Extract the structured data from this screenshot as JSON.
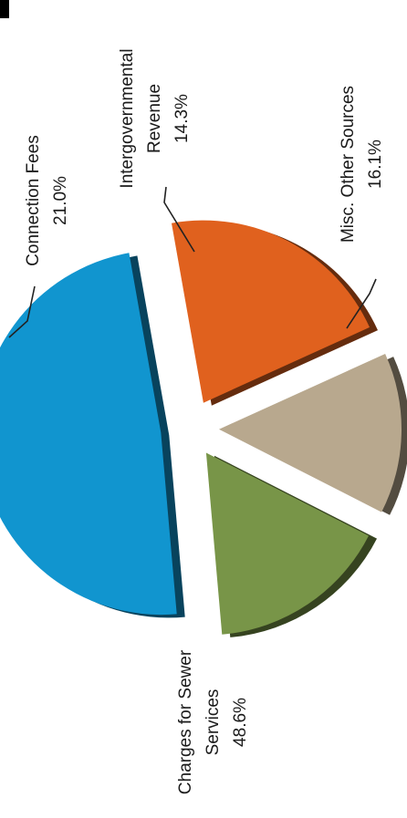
{
  "chart_data": {
    "type": "pie",
    "title": "",
    "slices": [
      {
        "label_lines": [
          "Charges for Sewer",
          "Services"
        ],
        "pct_label": "48.6%",
        "value": 48.6,
        "color": "#1195cf"
      },
      {
        "label_lines": [
          "Connection Fees"
        ],
        "pct_label": "21.0%",
        "value": 21.0,
        "color": "#e0611e"
      },
      {
        "label_lines": [
          "Intergovernmental",
          "Revenue"
        ],
        "pct_label": "14.3%",
        "value": 14.3,
        "color": "#b8a88e"
      },
      {
        "label_lines": [
          "Misc. Other Sources"
        ],
        "pct_label": "16.1%",
        "value": 16.1,
        "color": "#789548"
      }
    ]
  }
}
